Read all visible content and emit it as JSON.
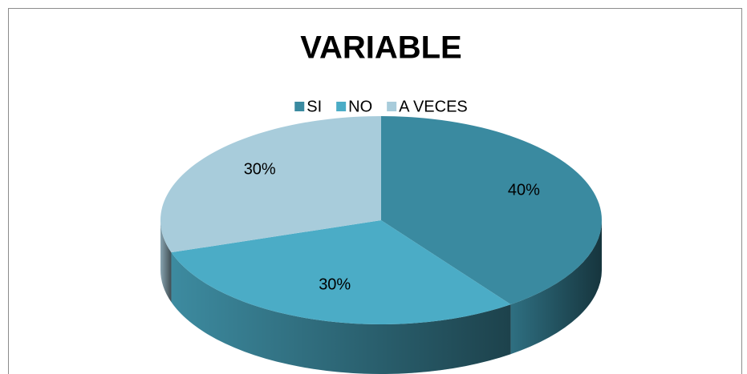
{
  "chart_data": {
    "type": "pie",
    "title": "VARIABLE",
    "categories": [
      "SI",
      "NO",
      "A VECES"
    ],
    "values": [
      40,
      30,
      30
    ],
    "value_labels": [
      "40%",
      "30%",
      "30%"
    ],
    "colors": [
      "#3a8aa0",
      "#4bacc6",
      "#a8ccdb"
    ],
    "legend": "top"
  }
}
